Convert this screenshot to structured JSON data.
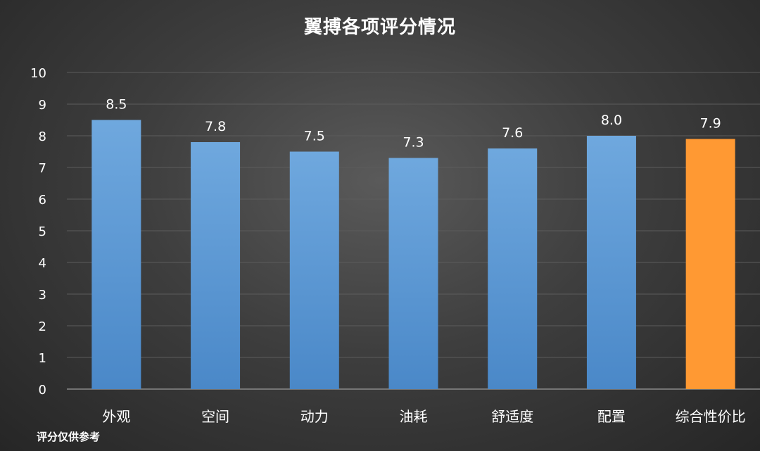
{
  "chart_data": {
    "type": "bar",
    "title": "翼搏各项评分情况",
    "categories": [
      "外观",
      "空间",
      "动力",
      "油耗",
      "舒适度",
      "配置",
      "综合性价比"
    ],
    "values": [
      8.5,
      7.8,
      7.5,
      7.3,
      7.6,
      8.0,
      7.9
    ],
    "value_labels": [
      "8.5",
      "7.8",
      "7.5",
      "7.3",
      "7.6",
      "8.0",
      "7.9"
    ],
    "ylim": [
      0,
      10
    ],
    "yticks": [
      0,
      1,
      2,
      3,
      4,
      5,
      6,
      7,
      8,
      9,
      10
    ],
    "xlabel": "",
    "ylabel": "",
    "grid": true,
    "legend": "none",
    "colors": {
      "bar": "#5b9bd5",
      "highlight_bar": "#ff9933",
      "highlight_index": 6
    }
  },
  "footnote": "评分仅供参考"
}
